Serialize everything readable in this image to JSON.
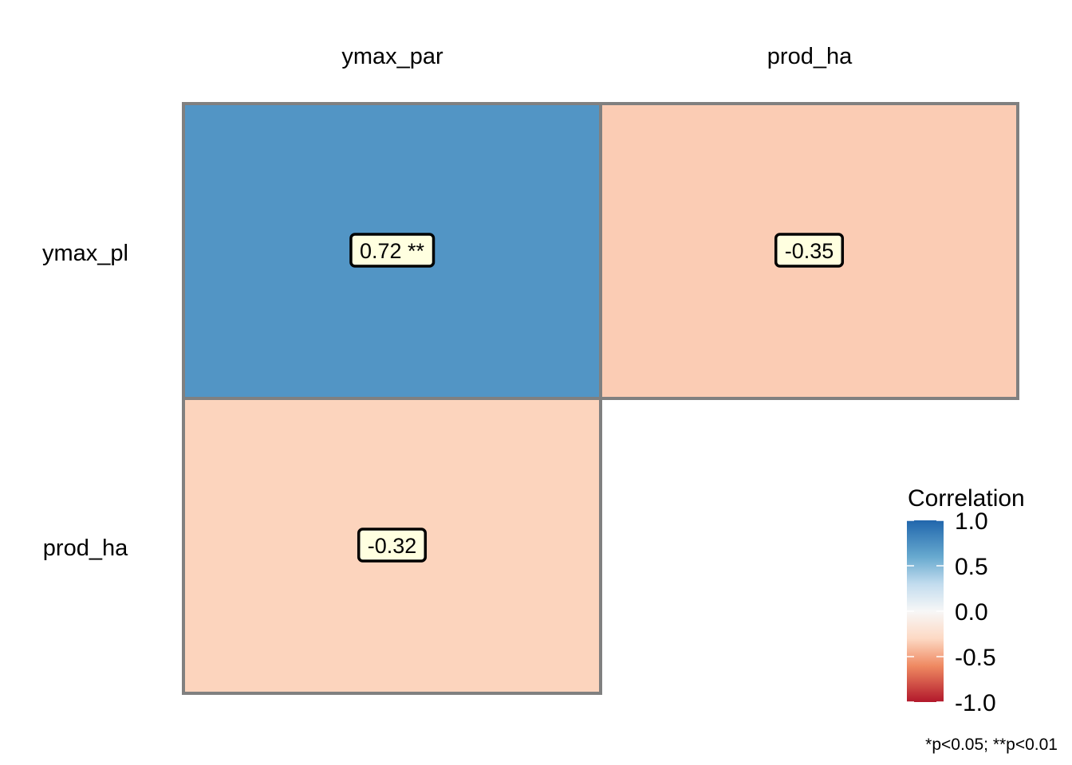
{
  "chart_data": {
    "type": "heatmap",
    "title": "",
    "columns": [
      "ymax_par",
      "prod_ha"
    ],
    "rows": [
      "ymax_pl",
      "prod_ha"
    ],
    "cells": [
      {
        "row": "ymax_pl",
        "col": "ymax_par",
        "value": 0.72,
        "label": "0.72 **"
      },
      {
        "row": "ymax_pl",
        "col": "prod_ha",
        "value": -0.35,
        "label": "-0.35"
      },
      {
        "row": "prod_ha",
        "col": "ymax_par",
        "value": -0.32,
        "label": "-0.32"
      }
    ],
    "legend": {
      "title": "Correlation",
      "ticks": [
        1.0,
        0.5,
        0.0,
        -0.5,
        -1.0
      ],
      "tick_labels": [
        "1.0",
        "0.5",
        "0.0",
        "-0.5",
        "-1.0"
      ],
      "range": [
        -1,
        1
      ],
      "placement": "bottom-right"
    },
    "footnote": "*p<0.05; **p<0.01",
    "colors": {
      "positive": "#2166ac",
      "zero": "#f7f7f7",
      "negative": "#b2182b",
      "cell_border": "#808080",
      "label_fill": "#ffffe0",
      "label_border": "#000000"
    }
  }
}
